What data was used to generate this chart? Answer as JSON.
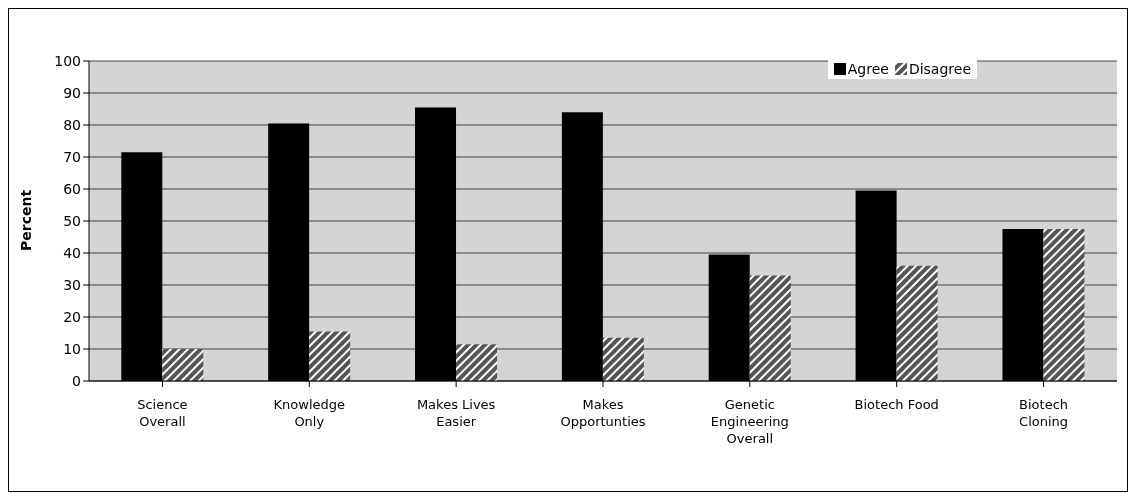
{
  "chart_data": {
    "type": "bar",
    "ylabel": "Percent",
    "categories": [
      "Science Overall",
      "Knowledge Only",
      "Makes Lives Easier",
      "Makes Opportunties",
      "Genetic Engineering Overall",
      "Biotech Food",
      "Biotech Cloning"
    ],
    "series": [
      {
        "name": "Agree",
        "color": "#000000",
        "values": [
          71.5,
          80.5,
          85.5,
          84,
          39.5,
          59.5,
          47.5
        ]
      },
      {
        "name": "Disagree",
        "color": "#555555",
        "values": [
          10,
          15.5,
          11.5,
          13.5,
          33,
          36,
          47.5
        ]
      }
    ],
    "ylim": [
      0,
      100
    ],
    "yticks": [
      0,
      10,
      20,
      30,
      40,
      50,
      60,
      70,
      80,
      90,
      100
    ],
    "grid": "y",
    "legend": "top right"
  }
}
